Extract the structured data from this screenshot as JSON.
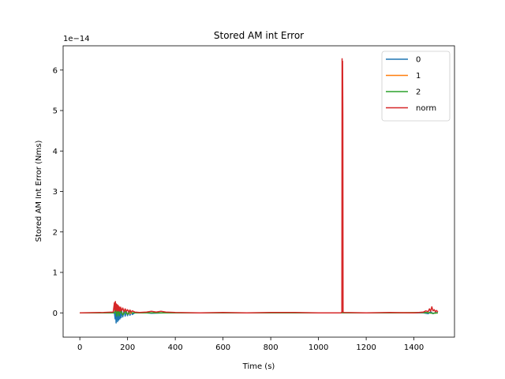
{
  "chart_data": {
    "type": "line",
    "title": "Stored AM int Error",
    "xlabel": "Time (s)",
    "ylabel": "Stored AM Int Error (Nms)",
    "y_multiplier": "1e−14",
    "xlim": [
      -70,
      1570
    ],
    "ylim": [
      -0.6,
      6.6
    ],
    "x_ticks": [
      0,
      200,
      400,
      600,
      800,
      1000,
      1200,
      1400
    ],
    "y_ticks": [
      0,
      1,
      2,
      3,
      4,
      5,
      6
    ],
    "grid": false,
    "legend": "top-right",
    "series": [
      {
        "name": "0",
        "color": "#1f77b4",
        "x": [
          0,
          100,
          145,
          148,
          150,
          152,
          155,
          158,
          160,
          163,
          165,
          168,
          170,
          173,
          175,
          180,
          185,
          190,
          195,
          200,
          205,
          210,
          215,
          220,
          230,
          260,
          300,
          350,
          400,
          500,
          600,
          700,
          800,
          900,
          1000,
          1098,
          1100,
          1103,
          1200,
          1300,
          1400,
          1440,
          1460,
          1470,
          1480,
          1490,
          1500
        ],
        "y": [
          0,
          0,
          0,
          -0.15,
          0.05,
          -0.25,
          0.1,
          -0.22,
          0.05,
          -0.18,
          0.08,
          -0.15,
          0.05,
          -0.12,
          0.06,
          -0.1,
          0.05,
          -0.08,
          0.04,
          -0.07,
          0.03,
          -0.06,
          0.02,
          -0.04,
          0.0,
          0.01,
          -0.01,
          0.0,
          0.0,
          0.0,
          0.0,
          0.0,
          0.0,
          0.0,
          0.0,
          0.0,
          0.02,
          0.0,
          0.0,
          0.0,
          0.0,
          0.0,
          -0.02,
          0.03,
          -0.02,
          0.01,
          0.0
        ]
      },
      {
        "name": "1",
        "color": "#ff7f0e",
        "x": [
          0,
          100,
          145,
          150,
          155,
          160,
          165,
          170,
          180,
          190,
          200,
          220,
          300,
          500,
          700,
          900,
          1098,
          1100,
          1103,
          1300,
          1450,
          1480,
          1500
        ],
        "y": [
          0,
          0,
          0,
          0.08,
          -0.06,
          0.07,
          -0.05,
          0.05,
          -0.04,
          0.03,
          -0.02,
          0.0,
          0.0,
          0.0,
          0.0,
          0.0,
          0.0,
          0.03,
          0.0,
          0.0,
          0.01,
          -0.01,
          0.0
        ]
      },
      {
        "name": "2",
        "color": "#2ca02c",
        "x": [
          0,
          100,
          145,
          150,
          155,
          160,
          165,
          170,
          180,
          190,
          200,
          210,
          220,
          300,
          500,
          700,
          900,
          1098,
          1100,
          1103,
          1300,
          1450,
          1480,
          1500
        ],
        "y": [
          0,
          0,
          0,
          0.1,
          -0.08,
          0.09,
          -0.07,
          0.06,
          -0.05,
          0.04,
          -0.04,
          0.03,
          0.0,
          0.0,
          0.0,
          0.0,
          0.0,
          0.0,
          0.02,
          0.0,
          0.0,
          0.01,
          -0.01,
          0.0
        ]
      },
      {
        "name": "norm",
        "color": "#d62728",
        "x": [
          0,
          100,
          140,
          145,
          147,
          149,
          151,
          153,
          155,
          157,
          159,
          161,
          163,
          165,
          168,
          171,
          175,
          180,
          185,
          190,
          195,
          200,
          205,
          210,
          215,
          220,
          230,
          250,
          280,
          300,
          320,
          340,
          360,
          400,
          500,
          600,
          700,
          800,
          900,
          1000,
          1095,
          1098,
          1099,
          1100,
          1101,
          1102,
          1103,
          1105,
          1200,
          1300,
          1400,
          1440,
          1450,
          1460,
          1465,
          1470,
          1475,
          1480,
          1485,
          1490,
          1495,
          1500
        ],
        "y": [
          0,
          0.01,
          0.02,
          0.25,
          0.05,
          0.28,
          0.08,
          0.22,
          0.04,
          0.2,
          0.06,
          0.18,
          0.05,
          0.15,
          0.04,
          0.14,
          0.05,
          0.12,
          0.03,
          0.1,
          0.04,
          0.08,
          0.02,
          0.07,
          0.02,
          0.05,
          0.02,
          0.01,
          0.02,
          0.04,
          0.02,
          0.04,
          0.02,
          0.01,
          0.0,
          0.01,
          0.0,
          0.01,
          0.01,
          0.0,
          0.0,
          0.02,
          6.28,
          0.05,
          6.22,
          4.92,
          0.02,
          0.01,
          0.0,
          0.01,
          0.0,
          0.02,
          0.05,
          0.03,
          0.1,
          0.04,
          0.15,
          0.05,
          0.08,
          0.03,
          0.06,
          0.02
        ]
      }
    ]
  }
}
